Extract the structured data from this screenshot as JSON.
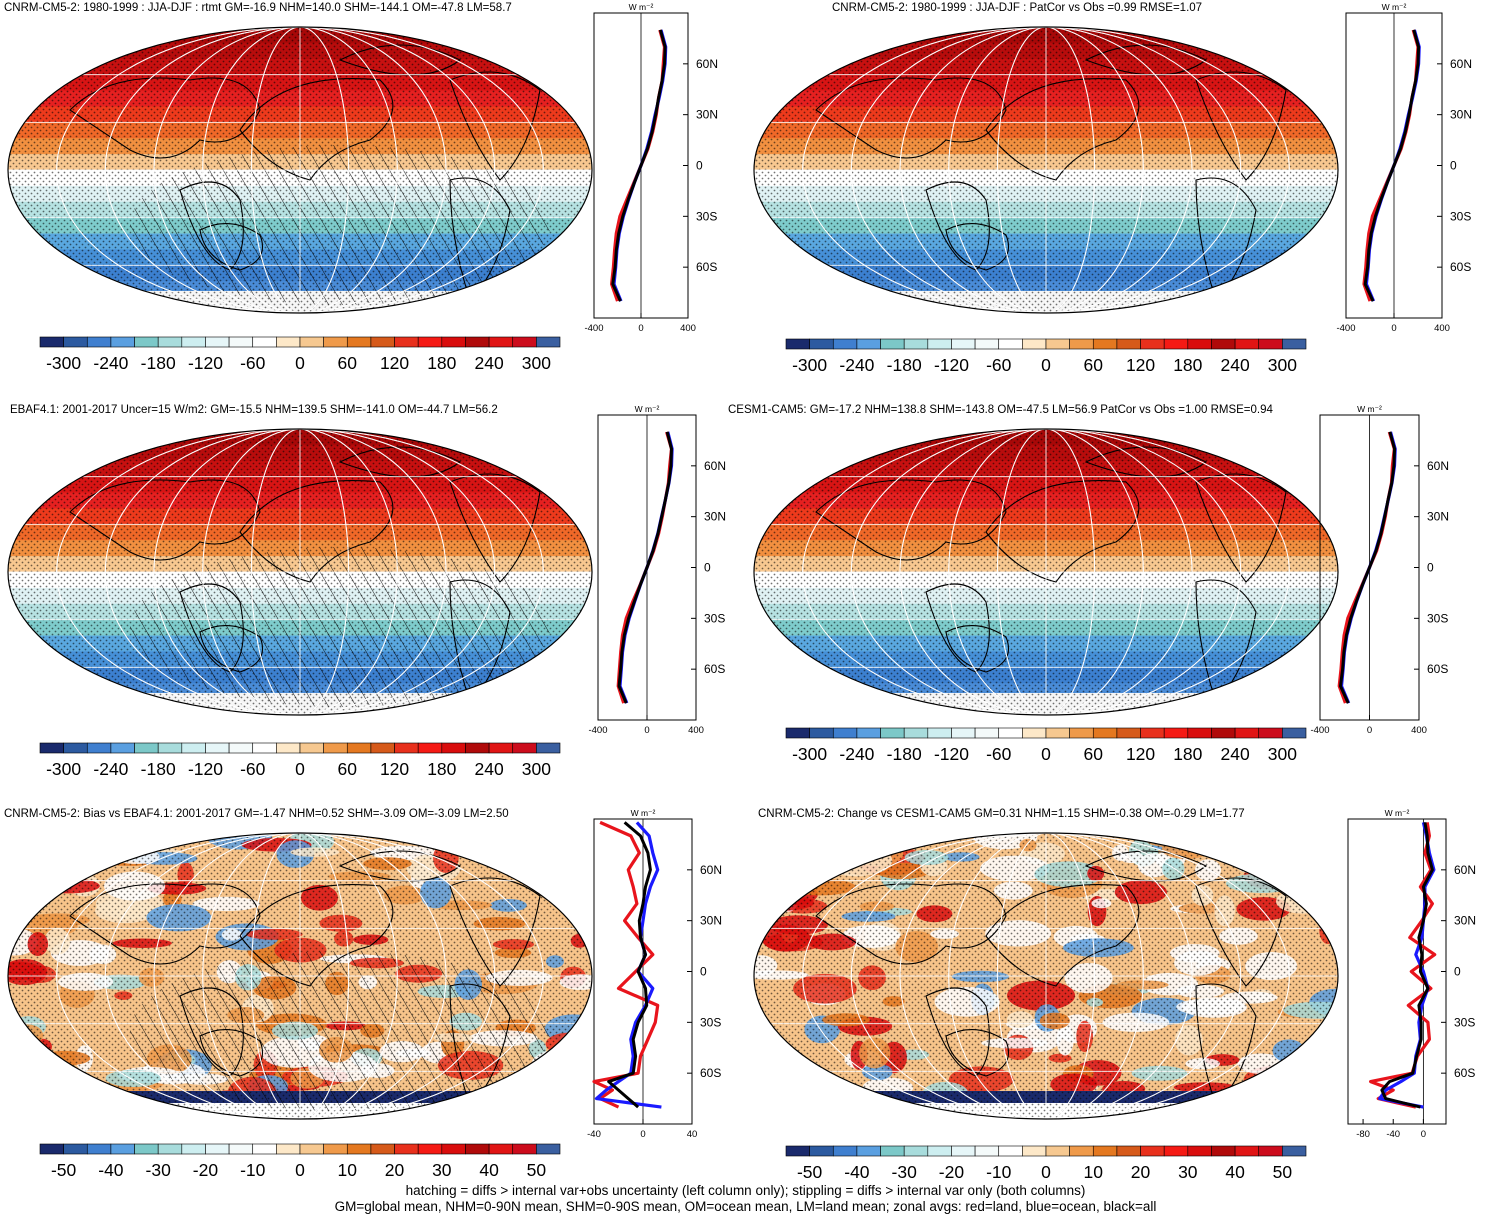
{
  "figure": {
    "footnote_line1": "hatching = diffs > internal var+obs uncertainty (left column only); stippling = diffs > internal var only (both columns)",
    "footnote_line2": "GM=global mean, NHM=0-90N mean, SHM=0-90S mean, OM=ocean mean, LM=land mean; zonal avgs: red=land, blue=ocean, black=all",
    "colors": {
      "land": "#e8141c",
      "ocean": "#1a1aff",
      "all": "#000000"
    }
  },
  "chart_data": [
    {
      "type": "heatmap",
      "title": "CNRM-CM5-2: 1980-1999 : JJA-DJF : rtmt GM=-16.9 NHM=140.0 SHM=-144.1 OM=-47.8 LM=58.7",
      "colorbar_labels": [
        "-300",
        "-240",
        "-180",
        "-120",
        "-60",
        "0",
        "60",
        "120",
        "180",
        "240",
        "300"
      ],
      "zonal_profile": {
        "unit": "W m⁻²",
        "xlim": [
          -400,
          400
        ],
        "x_ticks": [
          "-400",
          "0",
          "400"
        ],
        "y_ticks": [
          "60N",
          "30N",
          "0",
          "30S",
          "60S"
        ],
        "lat": [
          80,
          70,
          60,
          50,
          40,
          30,
          20,
          10,
          0,
          -10,
          -20,
          -30,
          -40,
          -50,
          -60,
          -70,
          -80
        ],
        "series": [
          {
            "name": "land",
            "values": [
              160,
              200,
              190,
              180,
              150,
              130,
              100,
              60,
              0,
              -60,
              -120,
              -180,
              -210,
              -225,
              -235,
              -250,
              -200
            ]
          },
          {
            "name": "ocean",
            "values": [
              170,
              210,
              205,
              185,
              155,
              120,
              90,
              50,
              0,
              -55,
              -105,
              -150,
              -185,
              -205,
              -215,
              -230,
              -170
            ]
          },
          {
            "name": "all",
            "values": [
              165,
              205,
              200,
              180,
              150,
              125,
              95,
              55,
              0,
              -55,
              -108,
              -155,
              -190,
              -210,
              -220,
              -240,
              -175
            ]
          }
        ]
      },
      "map": {
        "stipple": true,
        "hatch": true
      }
    },
    {
      "type": "heatmap",
      "title": "CNRM-CM5-2: 1980-1999 : JJA-DJF : PatCor vs Obs =0.99 RMSE=1.07",
      "colorbar_labels": [
        "-300",
        "-240",
        "-180",
        "-120",
        "-60",
        "0",
        "60",
        "120",
        "180",
        "240",
        "300"
      ],
      "zonal_profile": {
        "unit": "W m⁻²",
        "xlim": [
          -400,
          400
        ],
        "x_ticks": [
          "-400",
          "0",
          "400"
        ],
        "y_ticks": [
          "60N",
          "30N",
          "0",
          "30S",
          "60S"
        ],
        "lat": [
          80,
          70,
          60,
          50,
          40,
          30,
          20,
          10,
          0,
          -10,
          -20,
          -30,
          -40,
          -50,
          -60,
          -70,
          -80
        ],
        "series": [
          {
            "name": "land",
            "values": [
              160,
              200,
              190,
              180,
              150,
              130,
              100,
              60,
              0,
              -60,
              -120,
              -180,
              -210,
              -225,
              -235,
              -250,
              -200
            ]
          },
          {
            "name": "ocean",
            "values": [
              170,
              210,
              205,
              185,
              155,
              120,
              90,
              50,
              0,
              -55,
              -105,
              -150,
              -185,
              -205,
              -215,
              -230,
              -170
            ]
          },
          {
            "name": "all",
            "values": [
              165,
              205,
              200,
              180,
              150,
              125,
              95,
              55,
              0,
              -55,
              -108,
              -155,
              -190,
              -210,
              -220,
              -240,
              -175
            ]
          }
        ]
      },
      "map": {
        "stipple": true,
        "hatch": false
      }
    },
    {
      "type": "heatmap",
      "title": "EBAF4.1: 2001-2017 Uncer=15 W/m2: GM=-15.5 NHM=139.5 SHM=-141.0 OM=-44.7 LM=56.2",
      "colorbar_labels": [
        "-300",
        "-240",
        "-180",
        "-120",
        "-60",
        "0",
        "60",
        "120",
        "180",
        "240",
        "300"
      ],
      "zonal_profile": {
        "unit": "W m⁻²",
        "xlim": [
          -400,
          400
        ],
        "x_ticks": [
          "-400",
          "0",
          "400"
        ],
        "y_ticks": [
          "60N",
          "30N",
          "0",
          "30S",
          "60S"
        ],
        "lat": [
          80,
          70,
          60,
          50,
          40,
          30,
          20,
          10,
          0,
          -10,
          -20,
          -30,
          -40,
          -50,
          -60,
          -70,
          -80
        ],
        "series": [
          {
            "name": "land",
            "values": [
              160,
              200,
              185,
              175,
              150,
              125,
              95,
              55,
              0,
              -55,
              -115,
              -170,
              -200,
              -215,
              -225,
              -235,
              -190
            ]
          },
          {
            "name": "ocean",
            "values": [
              170,
              205,
              200,
              180,
              150,
              118,
              88,
              48,
              0,
              -52,
              -100,
              -145,
              -180,
              -200,
              -210,
              -220,
              -165
            ]
          },
          {
            "name": "all",
            "values": [
              165,
              200,
              195,
              178,
              150,
              120,
              90,
              50,
              0,
              -53,
              -103,
              -150,
              -185,
              -205,
              -215,
              -228,
              -170
            ]
          }
        ]
      },
      "map": {
        "stipple": true,
        "hatch": true
      }
    },
    {
      "type": "heatmap",
      "title": "CESM1-CAM5: GM=-17.2 NHM=138.8 SHM=-143.8 OM=-47.5 LM=56.9 PatCor vs Obs =1.00 RMSE=0.94",
      "colorbar_labels": [
        "-300",
        "-240",
        "-180",
        "-120",
        "-60",
        "0",
        "60",
        "120",
        "180",
        "240",
        "300"
      ],
      "zonal_profile": {
        "unit": "W m⁻²",
        "xlim": [
          -400,
          400
        ],
        "x_ticks": [
          "-400",
          "0",
          "400"
        ],
        "y_ticks": [
          "60N",
          "30N",
          "0",
          "30S",
          "60S"
        ],
        "lat": [
          80,
          70,
          60,
          50,
          40,
          30,
          20,
          10,
          0,
          -10,
          -20,
          -30,
          -40,
          -50,
          -60,
          -70,
          -80
        ],
        "series": [
          {
            "name": "land",
            "values": [
              160,
              200,
              185,
              178,
              150,
              128,
              98,
              58,
              0,
              -58,
              -118,
              -175,
              -205,
              -220,
              -230,
              -245,
              -195
            ]
          },
          {
            "name": "ocean",
            "values": [
              170,
              208,
              202,
              182,
              152,
              120,
              90,
              50,
              0,
              -54,
              -104,
              -148,
              -183,
              -203,
              -213,
              -226,
              -168
            ]
          },
          {
            "name": "all",
            "values": [
              165,
              203,
              197,
              180,
              150,
              123,
              93,
              53,
              0,
              -55,
              -106,
              -152,
              -187,
              -207,
              -217,
              -234,
              -172
            ]
          }
        ]
      },
      "map": {
        "stipple": true,
        "hatch": false
      }
    },
    {
      "type": "heatmap",
      "title": "CNRM-CM5-2: Bias vs EBAF4.1: 2001-2017 GM=-1.47 NHM=0.52 SHM=-3.09 OM=-3.09 LM=2.50",
      "colorbar_labels": [
        "-50",
        "-40",
        "-30",
        "-20",
        "-10",
        "0",
        "10",
        "20",
        "30",
        "40",
        "50"
      ],
      "zonal_profile": {
        "unit": "W m⁻²",
        "xlim": [
          -40,
          40
        ],
        "x_ticks": [
          "-40",
          "0",
          "40"
        ],
        "y_ticks": [
          "60N",
          "30N",
          "0",
          "30S",
          "60S"
        ],
        "lat": [
          88,
          80,
          70,
          60,
          50,
          40,
          30,
          20,
          10,
          0,
          -10,
          -20,
          -30,
          -40,
          -50,
          -60,
          -65,
          -70,
          -75,
          -80
        ],
        "series": [
          {
            "name": "land",
            "values": [
              -35,
              -10,
              -3,
              -12,
              -8,
              -5,
              -15,
              -4,
              8,
              -6,
              -20,
              12,
              10,
              4,
              -2,
              -4,
              -40,
              -25,
              -35,
              -20
            ]
          },
          {
            "name": "ocean",
            "values": [
              -5,
              5,
              8,
              12,
              6,
              2,
              0,
              -2,
              2,
              -4,
              8,
              2,
              -6,
              -10,
              -8,
              -10,
              -20,
              -30,
              -38,
              15
            ]
          },
          {
            "name": "all",
            "values": [
              -15,
              -2,
              4,
              6,
              2,
              0,
              -3,
              -2,
              2,
              -4,
              2,
              3,
              -4,
              -8,
              -6,
              -8,
              -28,
              -20,
              -12,
              -4
            ]
          }
        ]
      },
      "map": {
        "stipple": true,
        "hatch": true
      }
    },
    {
      "type": "heatmap",
      "title": "CNRM-CM5-2: Change vs CESM1-CAM5 GM=0.31 NHM=1.15 SHM=-0.38 OM=-0.29 LM=1.77",
      "colorbar_labels": [
        "-50",
        "-40",
        "-30",
        "-20",
        "-10",
        "0",
        "10",
        "20",
        "30",
        "40",
        "50"
      ],
      "zonal_profile": {
        "unit": "W m⁻²",
        "xlim": [
          -100,
          30
        ],
        "x_ticks": [
          "-80",
          "-40",
          "0"
        ],
        "y_ticks": [
          "60N",
          "30N",
          "0",
          "30S",
          "60S"
        ],
        "lat": [
          88,
          80,
          70,
          60,
          50,
          40,
          30,
          20,
          10,
          0,
          -10,
          -20,
          -30,
          -40,
          -50,
          -60,
          -65,
          -70,
          -75,
          -80
        ],
        "series": [
          {
            "name": "land",
            "values": [
              5,
              8,
              2,
              10,
              -4,
              12,
              -2,
              -18,
              15,
              -16,
              10,
              -20,
              6,
              8,
              -8,
              -15,
              -70,
              -40,
              -60,
              -10
            ]
          },
          {
            "name": "ocean",
            "values": [
              0,
              4,
              8,
              14,
              2,
              2,
              0,
              -2,
              -10,
              0,
              6,
              -2,
              -6,
              -4,
              -10,
              -12,
              -30,
              -50,
              -58,
              0
            ]
          },
          {
            "name": "all",
            "values": [
              2,
              5,
              6,
              12,
              0,
              4,
              0,
              -6,
              -2,
              -4,
              6,
              -6,
              -3,
              -3,
              -9,
              -14,
              -45,
              -55,
              -50,
              -4
            ]
          }
        ]
      },
      "map": {
        "stipple": true,
        "hatch": false
      }
    }
  ]
}
